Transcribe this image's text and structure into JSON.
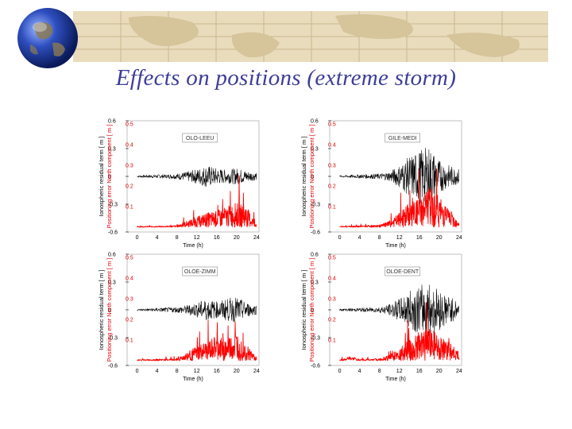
{
  "slide": {
    "title": "Effects on positions (extreme storm)"
  },
  "colors": {
    "title": "#3d3d99",
    "residual": "#000000",
    "positioning_error": "#ff0000",
    "banner": "#e9dcbc"
  },
  "chart_data": [
    {
      "type": "line",
      "label": "OLO-LEEU",
      "xlabel": "Time (h)",
      "ylabel_left": "Ionospheric residual term [ m ]",
      "ylabel_right": "Positioning error North component [ m ]",
      "xlim": [
        -2,
        24.5
      ],
      "xticks": [
        0,
        4,
        8,
        12,
        16,
        20,
        24
      ],
      "ylim_left": [
        -0.6,
        0.6
      ],
      "yticks_left": [
        -0.6,
        -0.3,
        0,
        0.3,
        0.6
      ],
      "ylim_right": [
        0,
        0.5
      ],
      "yticks_right": [
        0.1,
        0.2,
        0.3,
        0.4,
        0.5
      ],
      "series": [
        {
          "name": "Ionospheric residual term",
          "axis": "left",
          "color": "#000000",
          "envelope": [
            [
              0,
              0.01
            ],
            [
              2,
              0.015
            ],
            [
              4,
              0.02
            ],
            [
              6,
              0.02
            ],
            [
              8,
              0.03
            ],
            [
              10,
              0.05
            ],
            [
              12,
              0.08
            ],
            [
              14,
              0.12
            ],
            [
              16,
              0.09
            ],
            [
              18,
              0.07
            ],
            [
              20,
              0.09
            ],
            [
              22,
              0.06
            ],
            [
              24,
              0.04
            ]
          ]
        },
        {
          "name": "Positioning error North component",
          "axis": "right",
          "color": "#ff0000",
          "envelope": [
            [
              0,
              0.005
            ],
            [
              4,
              0.005
            ],
            [
              8,
              0.008
            ],
            [
              10,
              0.03
            ],
            [
              12,
              0.05
            ],
            [
              14,
              0.07
            ],
            [
              16,
              0.08
            ],
            [
              18,
              0.1
            ],
            [
              20,
              0.12
            ],
            [
              22,
              0.1
            ],
            [
              24,
              0.02
            ]
          ]
        }
      ]
    },
    {
      "type": "line",
      "label": "GILE-MEDI",
      "xlabel": "Time (h)",
      "ylabel_left": "Ionospheric residual term [ m ]",
      "ylabel_right": "Positioning error North component [ m ]",
      "xlim": [
        -2,
        24.5
      ],
      "xticks": [
        0,
        4,
        8,
        12,
        16,
        20,
        24
      ],
      "ylim_left": [
        -0.6,
        0.6
      ],
      "yticks_left": [
        -0.6,
        -0.3,
        0,
        0.3,
        0.6
      ],
      "ylim_right": [
        0,
        0.5
      ],
      "yticks_right": [
        0.1,
        0.2,
        0.3,
        0.4,
        0.5
      ],
      "series": [
        {
          "name": "Ionospheric residual term",
          "axis": "left",
          "color": "#000000",
          "envelope": [
            [
              0,
              0.01
            ],
            [
              4,
              0.02
            ],
            [
              8,
              0.03
            ],
            [
              10,
              0.05
            ],
            [
              12,
              0.12
            ],
            [
              14,
              0.22
            ],
            [
              16,
              0.28
            ],
            [
              18,
              0.33
            ],
            [
              20,
              0.18
            ],
            [
              22,
              0.12
            ],
            [
              24,
              0.08
            ]
          ]
        },
        {
          "name": "Positioning error North component",
          "axis": "right",
          "color": "#ff0000",
          "envelope": [
            [
              0,
              0.005
            ],
            [
              4,
              0.008
            ],
            [
              8,
              0.01
            ],
            [
              10,
              0.03
            ],
            [
              12,
              0.07
            ],
            [
              14,
              0.12
            ],
            [
              16,
              0.14
            ],
            [
              18,
              0.2
            ],
            [
              20,
              0.15
            ],
            [
              22,
              0.09
            ],
            [
              24,
              0.03
            ]
          ]
        }
      ]
    },
    {
      "type": "line",
      "label": "OLOE-ZIMM",
      "xlabel": "Time (h)",
      "ylabel_left": "Ionospheric residual term [ m ]",
      "ylabel_right": "Positioning error North component [ m ]",
      "xlim": [
        -2,
        24.5
      ],
      "xticks": [
        0,
        4,
        8,
        12,
        16,
        20,
        24
      ],
      "ylim_left": [
        -0.6,
        0.6
      ],
      "yticks_left": [
        -0.6,
        -0.3,
        0,
        0.3,
        0.6
      ],
      "ylim_right": [
        0,
        0.5
      ],
      "yticks_right": [
        0.1,
        0.2,
        0.3,
        0.4,
        0.5
      ],
      "series": [
        {
          "name": "Ionospheric residual term",
          "axis": "left",
          "color": "#000000",
          "envelope": [
            [
              0,
              0.01
            ],
            [
              4,
              0.02
            ],
            [
              8,
              0.03
            ],
            [
              10,
              0.05
            ],
            [
              12,
              0.08
            ],
            [
              14,
              0.12
            ],
            [
              16,
              0.09
            ],
            [
              18,
              0.12
            ],
            [
              20,
              0.14
            ],
            [
              22,
              0.08
            ],
            [
              24,
              0.05
            ]
          ]
        },
        {
          "name": "Positioning error North component",
          "axis": "right",
          "color": "#ff0000",
          "envelope": [
            [
              0,
              0.005
            ],
            [
              4,
              0.008
            ],
            [
              8,
              0.01
            ],
            [
              10,
              0.04
            ],
            [
              12,
              0.07
            ],
            [
              14,
              0.09
            ],
            [
              16,
              0.12
            ],
            [
              18,
              0.1
            ],
            [
              20,
              0.14
            ],
            [
              22,
              0.08
            ],
            [
              24,
              0.02
            ]
          ]
        }
      ]
    },
    {
      "type": "line",
      "label": "OLOE-DENT",
      "xlabel": "Time (h)",
      "ylabel_left": "Ionospheric residual term [ m ]",
      "ylabel_right": "Positioning error North component [ m ]",
      "xlim": [
        -2,
        24.5
      ],
      "xticks": [
        0,
        4,
        8,
        12,
        16,
        20,
        24
      ],
      "ylim_left": [
        -0.6,
        0.6
      ],
      "yticks_left": [
        -0.6,
        -0.3,
        0,
        0.3,
        0.6
      ],
      "ylim_right": [
        0,
        0.5
      ],
      "yticks_right": [
        0.1,
        0.2,
        0.3,
        0.4,
        0.5
      ],
      "series": [
        {
          "name": "Ionospheric residual term",
          "axis": "left",
          "color": "#000000",
          "envelope": [
            [
              0,
              0.01
            ],
            [
              4,
              0.02
            ],
            [
              8,
              0.03
            ],
            [
              10,
              0.06
            ],
            [
              12,
              0.12
            ],
            [
              14,
              0.2
            ],
            [
              16,
              0.26
            ],
            [
              18,
              0.3
            ],
            [
              20,
              0.22
            ],
            [
              22,
              0.15
            ],
            [
              24,
              0.08
            ]
          ]
        },
        {
          "name": "Positioning error North component",
          "axis": "right",
          "color": "#ff0000",
          "envelope": [
            [
              0,
              0.005
            ],
            [
              2,
              0.02
            ],
            [
              4,
              0.008
            ],
            [
              8,
              0.01
            ],
            [
              10,
              0.03
            ],
            [
              12,
              0.06
            ],
            [
              14,
              0.1
            ],
            [
              16,
              0.14
            ],
            [
              18,
              0.16
            ],
            [
              20,
              0.13
            ],
            [
              22,
              0.09
            ],
            [
              24,
              0.04
            ]
          ]
        }
      ]
    }
  ]
}
